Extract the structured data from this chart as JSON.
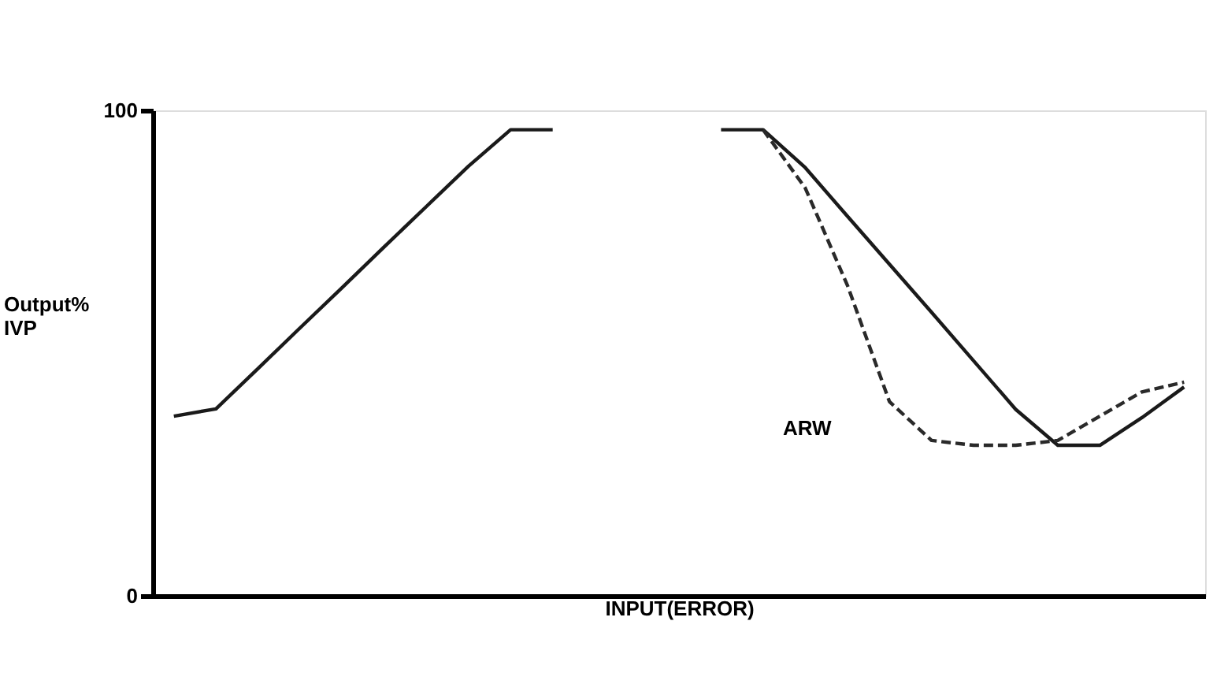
{
  "chart_data": {
    "type": "line",
    "xlabel": "INPUT(ERROR)",
    "ylabel": "Output%\nIVP",
    "categories": [
      null,
      null,
      null,
      null,
      null,
      null,
      null,
      null,
      null,
      null,
      null,
      null,
      null,
      null,
      null,
      null,
      null,
      null,
      null,
      null,
      null,
      null,
      null,
      null,
      null
    ],
    "series": [
      {
        "color": "#1a1a1a",
        "line_style": "solid",
        "values": [
          37,
          38.5,
          46.8,
          55.2,
          63.5,
          71.9,
          80.2,
          88.5,
          96,
          96,
          null,
          null,
          null,
          null,
          null,
          null,
          null,
          null,
          null,
          null,
          null,
          null,
          null,
          null,
          null
        ]
      },
      {
        "color": "#1a1a1a",
        "line_style": "solid",
        "values": [
          null,
          null,
          null,
          null,
          null,
          null,
          null,
          null,
          null,
          null,
          null,
          null,
          null,
          96,
          96,
          88.2,
          78.2,
          68.3,
          58.4,
          48.4,
          38.4,
          31,
          31,
          36.7,
          43
        ]
      },
      {
        "color": "#2a2a2a",
        "line_style": "dashed",
        "values": [
          null,
          null,
          null,
          null,
          null,
          null,
          null,
          null,
          null,
          null,
          null,
          null,
          null,
          null,
          96,
          84,
          64,
          40,
          32,
          31,
          31,
          32,
          37,
          42,
          44
        ]
      }
    ],
    "ylim": [
      0,
      100
    ],
    "yticks": [
      0,
      100
    ],
    "grid": false,
    "tick_labels": "y",
    "marker": "none",
    "annotations": [
      "ARW"
    ]
  }
}
